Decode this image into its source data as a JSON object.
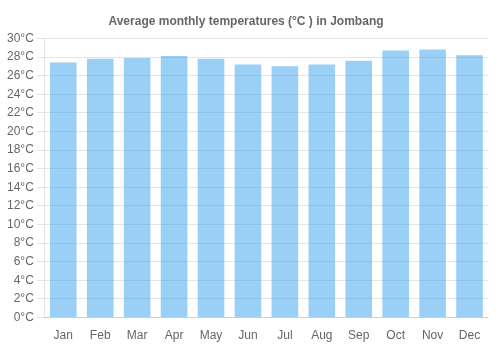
{
  "chart_data": {
    "type": "bar",
    "title": "Average monthly temperatures (°C ) in Jombang",
    "categories": [
      "Jan",
      "Feb",
      "Mar",
      "Apr",
      "May",
      "Jun",
      "Jul",
      "Aug",
      "Sep",
      "Oct",
      "Nov",
      "Dec"
    ],
    "values": [
      27.4,
      27.8,
      27.9,
      28.1,
      27.8,
      27.2,
      27.0,
      27.2,
      27.6,
      28.7,
      28.8,
      28.2
    ],
    "ylim": [
      0,
      30
    ],
    "yticks": [
      {
        "value": 0,
        "label": "0°C"
      },
      {
        "value": 2,
        "label": "2°C"
      },
      {
        "value": 4,
        "label": "4°C"
      },
      {
        "value": 6,
        "label": "6°C"
      },
      {
        "value": 8,
        "label": "8°C"
      },
      {
        "value": 10,
        "label": "10°C"
      },
      {
        "value": 12,
        "label": "12°C"
      },
      {
        "value": 14,
        "label": "14°C"
      },
      {
        "value": 16,
        "label": "16°C"
      },
      {
        "value": 18,
        "label": "18°C"
      },
      {
        "value": 20,
        "label": "20°C"
      },
      {
        "value": 22,
        "label": "22°C"
      },
      {
        "value": 24,
        "label": "24°C"
      },
      {
        "value": 26,
        "label": "26°C"
      },
      {
        "value": 28,
        "label": "28°C"
      },
      {
        "value": 30,
        "label": "30°C"
      }
    ],
    "grid": true
  }
}
